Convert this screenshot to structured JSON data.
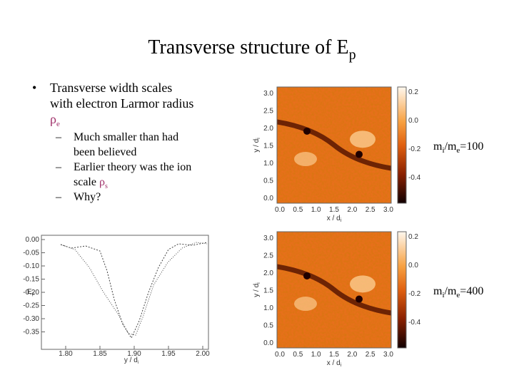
{
  "title": {
    "text": "Transverse structure of E",
    "sub": "p"
  },
  "bullets": [
    {
      "lines": [
        "Transverse width scales",
        "with electron Larmor radius"
      ],
      "symbol": "ρ",
      "symbol_sub": "e",
      "subbullets": [
        {
          "lines": [
            "Much smaller than had",
            "been believed"
          ]
        },
        {
          "lines": [
            "Earlier theory was the ion",
            "scale"
          ],
          "symbol": "ρ",
          "symbol_sub": "s"
        },
        {
          "lines": [
            "Why?"
          ]
        }
      ]
    }
  ],
  "panels": [
    {
      "y_label": "y / d",
      "y_label_sub": "i",
      "x_label": "x / d",
      "x_label_sub": "i",
      "yticks": [
        "3.0",
        "2.5",
        "2.0",
        "1.5",
        "1.0",
        "0.5",
        "0.0"
      ],
      "xticks": [
        "0.0",
        "0.5",
        "1.0",
        "1.5",
        "2.0",
        "2.5",
        "3.0"
      ],
      "colorbar_ticks": [
        "0.2",
        "0.0",
        "-0.2",
        "-0.4"
      ],
      "label": [
        "m",
        "i",
        "/m",
        "e",
        "=100"
      ]
    },
    {
      "y_label": "y / d",
      "y_label_sub": "i",
      "x_label": "x / d",
      "x_label_sub": "i",
      "yticks": [
        "3.0",
        "2.5",
        "2.0",
        "1.5",
        "1.0",
        "0.5",
        "0.0"
      ],
      "xticks": [
        "0.0",
        "0.5",
        "1.0",
        "1.5",
        "2.0",
        "2.5",
        "3.0"
      ],
      "colorbar_ticks": [
        "0.2",
        "0.0",
        "-0.2",
        "-0.4"
      ],
      "label": [
        "m",
        "i",
        "/m",
        "e",
        "=400"
      ]
    }
  ],
  "profile": {
    "y_label": "E",
    "y_label_sub": "p",
    "x_label": "y / d",
    "x_label_sub": "i",
    "yticks": [
      "0.00",
      "-0.05",
      "-0.10",
      "-0.15",
      "-0.20",
      "-0.25",
      "-0.30",
      "-0.35"
    ],
    "xticks": [
      "1.80",
      "1.85",
      "1.90",
      "1.95",
      "2.00"
    ]
  }
}
